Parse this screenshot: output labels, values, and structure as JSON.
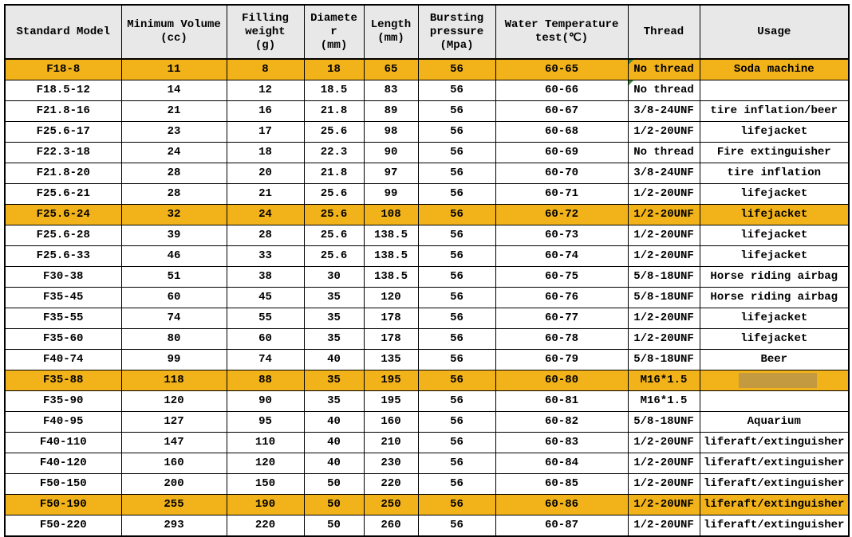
{
  "table": {
    "headers": [
      "Standard Model",
      "Minimum Volume\n(cc)",
      "Filling\nweight\n(g)",
      "Diamete\nr\n(mm)",
      "Length\n(mm)",
      "Bursting\npressure\n(Mpa)",
      "Water Temperature\ntest(℃)",
      "Thread",
      "Usage"
    ],
    "rows": [
      {
        "cells": [
          "F18-8",
          "11",
          "8",
          "18",
          "65",
          "56",
          "60-65",
          "No thread",
          "Soda machine"
        ],
        "highlighted": true
      },
      {
        "cells": [
          "F18.5-12",
          "14",
          "12",
          "18.5",
          "83",
          "56",
          "60-66",
          "No thread",
          ""
        ],
        "highlighted": false
      },
      {
        "cells": [
          "F21.8-16",
          "21",
          "16",
          "21.8",
          "89",
          "56",
          "60-67",
          "3/8-24UNF",
          "tire inflation/beer"
        ],
        "highlighted": false
      },
      {
        "cells": [
          "F25.6-17",
          "23",
          "17",
          "25.6",
          "98",
          "56",
          "60-68",
          "1/2-20UNF",
          "lifejacket"
        ],
        "highlighted": false
      },
      {
        "cells": [
          "F22.3-18",
          "24",
          "18",
          "22.3",
          "90",
          "56",
          "60-69",
          "No thread",
          "Fire extinguisher"
        ],
        "highlighted": false
      },
      {
        "cells": [
          "F21.8-20",
          "28",
          "20",
          "21.8",
          "97",
          "56",
          "60-70",
          "3/8-24UNF",
          "tire inflation"
        ],
        "highlighted": false
      },
      {
        "cells": [
          "F25.6-21",
          "28",
          "21",
          "25.6",
          "99",
          "56",
          "60-71",
          "1/2-20UNF",
          "lifejacket"
        ],
        "highlighted": false
      },
      {
        "cells": [
          "F25.6-24",
          "32",
          "24",
          "25.6",
          "108",
          "56",
          "60-72",
          "1/2-20UNF",
          "lifejacket"
        ],
        "highlighted": true
      },
      {
        "cells": [
          "F25.6-28",
          "39",
          "28",
          "25.6",
          "138.5",
          "56",
          "60-73",
          "1/2-20UNF",
          "lifejacket"
        ],
        "highlighted": false
      },
      {
        "cells": [
          "F25.6-33",
          "46",
          "33",
          "25.6",
          "138.5",
          "56",
          "60-74",
          "1/2-20UNF",
          "lifejacket"
        ],
        "highlighted": false
      },
      {
        "cells": [
          "F30-38",
          "51",
          "38",
          "30",
          "138.5",
          "56",
          "60-75",
          "5/8-18UNF",
          "Horse riding airbag"
        ],
        "highlighted": false
      },
      {
        "cells": [
          "F35-45",
          "60",
          "45",
          "35",
          "120",
          "56",
          "60-76",
          "5/8-18UNF",
          "Horse riding airbag"
        ],
        "highlighted": false
      },
      {
        "cells": [
          "F35-55",
          "74",
          "55",
          "35",
          "178",
          "56",
          "60-77",
          "1/2-20UNF",
          "lifejacket"
        ],
        "highlighted": false
      },
      {
        "cells": [
          "F35-60",
          "80",
          "60",
          "35",
          "178",
          "56",
          "60-78",
          "1/2-20UNF",
          "lifejacket"
        ],
        "highlighted": false
      },
      {
        "cells": [
          "F40-74",
          "99",
          "74",
          "40",
          "135",
          "56",
          "60-79",
          "5/8-18UNF",
          "Beer"
        ],
        "highlighted": false
      },
      {
        "cells": [
          "F35-88",
          "118",
          "88",
          "35",
          "195",
          "56",
          "60-80",
          "M16*1.5",
          ""
        ],
        "highlighted": true
      },
      {
        "cells": [
          "F35-90",
          "120",
          "90",
          "35",
          "195",
          "56",
          "60-81",
          "M16*1.5",
          ""
        ],
        "highlighted": false
      },
      {
        "cells": [
          "F40-95",
          "127",
          "95",
          "40",
          "160",
          "56",
          "60-82",
          "5/8-18UNF",
          "Aquarium"
        ],
        "highlighted": false
      },
      {
        "cells": [
          "F40-110",
          "147",
          "110",
          "40",
          "210",
          "56",
          "60-83",
          "1/2-20UNF",
          "liferaft/extinguisher"
        ],
        "highlighted": false
      },
      {
        "cells": [
          "F40-120",
          "160",
          "120",
          "40",
          "230",
          "56",
          "60-84",
          "1/2-20UNF",
          "liferaft/extinguisher"
        ],
        "highlighted": false
      },
      {
        "cells": [
          "F50-150",
          "200",
          "150",
          "50",
          "220",
          "56",
          "60-85",
          "1/2-20UNF",
          "liferaft/extinguisher"
        ],
        "highlighted": false
      },
      {
        "cells": [
          "F50-190",
          "255",
          "190",
          "50",
          "250",
          "56",
          "60-86",
          "1/2-20UNF",
          "liferaft/extinguisher"
        ],
        "highlighted": true
      },
      {
        "cells": [
          "F50-220",
          "293",
          "220",
          "50",
          "260",
          "56",
          "60-87",
          "1/2-20UNF",
          "liferaft/extinguisher"
        ],
        "highlighted": false
      }
    ]
  },
  "colors": {
    "highlight": "#f2b31a",
    "header_bg": "#e8e8e8",
    "redaction": "#c39a40",
    "marker_green": "#3c8a3c",
    "border": "#000000"
  },
  "artifacts": {
    "green_corner_rows": [
      0,
      1
    ],
    "green_left_row": 6,
    "redacted_usage_row": 15
  }
}
